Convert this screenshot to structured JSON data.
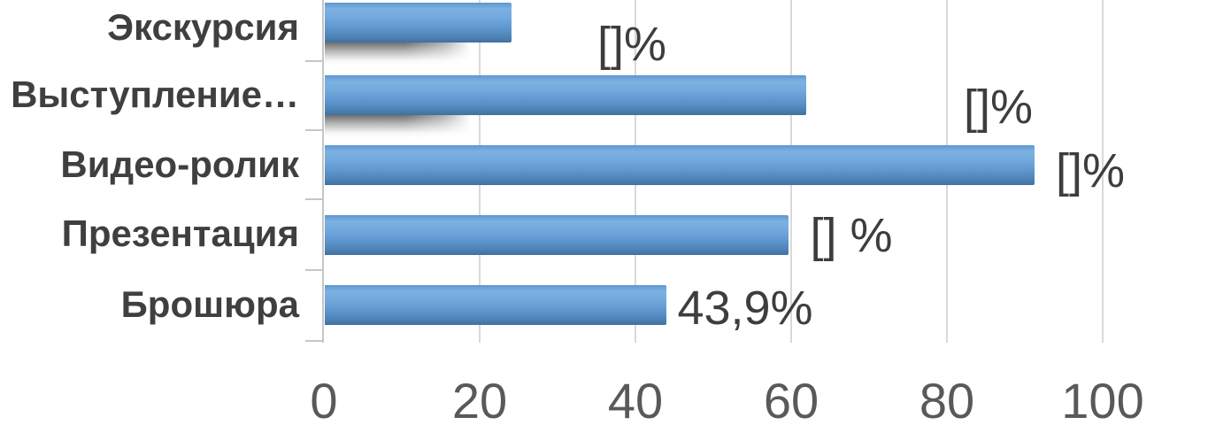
{
  "chart_data": {
    "type": "bar",
    "orientation": "horizontal",
    "title": "",
    "xlabel": "",
    "ylabel": "",
    "categories": [
      "Экскурсия",
      "Выступление…",
      "Видео-ролик",
      "Презентация",
      "Брошюра"
    ],
    "values": [
      24,
      61.8,
      91.1,
      59.5,
      43.9
    ],
    "data_labels": [
      "[]%",
      "[]%",
      "[]%",
      "[] %",
      "43,9%"
    ],
    "x_ticks": [
      0,
      20,
      40,
      60,
      80,
      100
    ],
    "xlim": [
      0,
      100
    ],
    "grid": true,
    "legend": false,
    "bar_color": "#5b9bd5",
    "gridline_color": "#d9d9d9",
    "axis_line_color": "#c6c6c6",
    "category_text_color": "#3f3f3f",
    "data_label_text_color": "#3d3d3d",
    "axis_text_color": "#595959"
  }
}
